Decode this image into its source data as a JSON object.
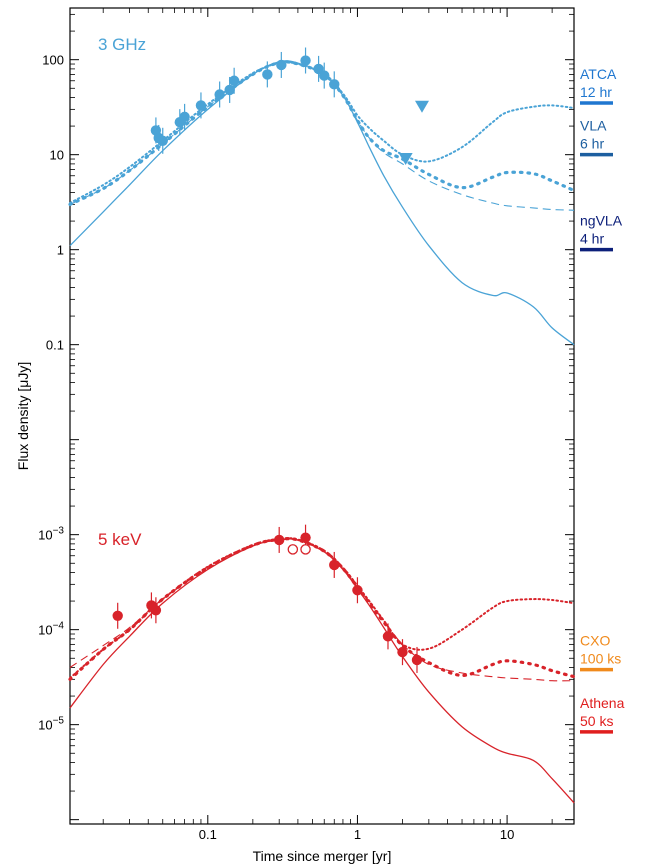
{
  "chart_data": {
    "type": "scatter",
    "xlabel": "Time since merger [yr]",
    "ylabel": "Flux density [μJy]",
    "x_scale": "log",
    "y_scale": "log",
    "xlim": [
      0.012,
      28
    ],
    "ylim": [
      9e-07,
      350
    ],
    "grid": false,
    "colors": {
      "radio": "#4aa3d6",
      "xray": "#d8232a",
      "atca": "#1f77d0",
      "vla": "#1d5fa0",
      "ngvla": "#0c1f7a",
      "cxo": "#f08a1c",
      "athena": "#e01e1e"
    },
    "x_ticks": [
      {
        "value": 0.1,
        "label": "0.1"
      },
      {
        "value": 1,
        "label": "1"
      },
      {
        "value": 10,
        "label": "10"
      }
    ],
    "y_ticks": [
      {
        "value": 100,
        "label": "100"
      },
      {
        "value": 10,
        "label": "10"
      },
      {
        "value": 1,
        "label": "1"
      },
      {
        "value": 0.1,
        "label": "0.1"
      },
      {
        "value": 0.001,
        "label": "10",
        "exp": "−3"
      },
      {
        "value": 0.0001,
        "label": "10",
        "exp": "−4"
      },
      {
        "value": 1e-05,
        "label": "10",
        "exp": "−5"
      }
    ],
    "panel_labels": [
      "3 GHz",
      "5 keV"
    ],
    "series": [
      {
        "name": "3 GHz",
        "role": "radio",
        "points": [
          [
            0.045,
            18
          ],
          [
            0.047,
            15
          ],
          [
            0.05,
            14
          ],
          [
            0.065,
            22
          ],
          [
            0.07,
            25
          ],
          [
            0.09,
            33
          ],
          [
            0.12,
            43
          ],
          [
            0.14,
            48
          ],
          [
            0.15,
            60
          ],
          [
            0.25,
            70
          ],
          [
            0.31,
            88
          ],
          [
            0.45,
            98
          ],
          [
            0.55,
            80
          ],
          [
            0.6,
            68
          ],
          [
            0.7,
            55
          ]
        ],
        "upper_limits": [
          [
            2.1,
            9.0
          ],
          [
            2.7,
            32
          ]
        ]
      },
      {
        "name": "5 keV",
        "role": "xray",
        "points": [
          [
            0.025,
            0.00014
          ],
          [
            0.042,
            0.00018
          ],
          [
            0.045,
            0.00016
          ],
          [
            0.3,
            0.00088
          ],
          [
            0.45,
            0.00093
          ],
          [
            0.7,
            0.00048
          ],
          [
            1.0,
            0.00026
          ],
          [
            1.6,
            8.5e-05
          ],
          [
            2.0,
            5.8e-05
          ],
          [
            2.5,
            4.8e-05
          ]
        ],
        "open_points": [
          [
            0.37,
            0.0007
          ],
          [
            0.45,
            0.0007
          ]
        ]
      }
    ],
    "models": {
      "radio": {
        "t": [
          0.012,
          0.02,
          0.03,
          0.05,
          0.1,
          0.2,
          0.3,
          0.4,
          0.6,
          0.8,
          1.0,
          1.2,
          1.5,
          2.0,
          3.0,
          5.0,
          8.0,
          10.0,
          15.0,
          20.0,
          28.0
        ],
        "solid": [
          1.1,
          2.5,
          4.8,
          11,
          30,
          70,
          95,
          92,
          70,
          42,
          22,
          12,
          6.0,
          2.8,
          1.1,
          0.45,
          0.33,
          0.35,
          0.25,
          0.15,
          0.1
        ],
        "dashed": [
          3.0,
          4.4,
          6.8,
          13,
          32,
          70,
          93,
          90,
          70,
          42,
          23,
          15,
          10.5,
          8.0,
          5.3,
          3.8,
          3.1,
          2.9,
          2.75,
          2.65,
          2.6
        ],
        "dotted": [
          3.1,
          4.8,
          7.4,
          14,
          34,
          72,
          92,
          90,
          70,
          44,
          26,
          19,
          14,
          10,
          8.5,
          12,
          22,
          28,
          32,
          33,
          31
        ],
        "densedot": [
          3.0,
          4.4,
          6.8,
          13,
          32,
          70,
          93,
          90,
          70,
          42,
          23,
          15,
          11,
          9.0,
          6.2,
          4.5,
          5.8,
          6.5,
          6.3,
          5.3,
          4.2
        ]
      },
      "xray": {
        "t": [
          0.012,
          0.02,
          0.03,
          0.05,
          0.1,
          0.2,
          0.3,
          0.4,
          0.6,
          0.8,
          1.0,
          1.2,
          1.5,
          2.0,
          3.0,
          5.0,
          8.0,
          10.0,
          15.0,
          20.0,
          28.0
        ],
        "solid": [
          1.5e-05,
          4.3e-05,
          8.5e-05,
          0.00019,
          0.00043,
          0.00076,
          0.00088,
          0.00088,
          0.00066,
          0.00043,
          0.00027,
          0.00018,
          0.000105,
          5.2e-05,
          2.2e-05,
          9.5e-06,
          5.8e-06,
          5e-06,
          4.2e-06,
          2.7e-06,
          1.5e-06
        ],
        "dashed": [
          4e-05,
          6.8e-05,
          0.000105,
          0.00021,
          0.00044,
          0.00076,
          0.00088,
          0.00087,
          0.00066,
          0.00044,
          0.00028,
          0.000195,
          0.000125,
          7e-05,
          4.3e-05,
          3.5e-05,
          3.2e-05,
          3.1e-05,
          3e-05,
          2.9e-05,
          2.9e-05
        ],
        "dotted": [
          3.1e-05,
          6.2e-05,
          0.0001,
          0.00021,
          0.00046,
          0.00078,
          0.0009,
          0.00089,
          0.00068,
          0.00045,
          0.00029,
          0.0002,
          0.000125,
          7e-05,
          6.3e-05,
          0.0001,
          0.00017,
          0.0002,
          0.00021,
          0.000205,
          0.00019
        ],
        "densedot": [
          3e-05,
          6.2e-05,
          0.0001,
          0.00021,
          0.00045,
          0.00077,
          0.00089,
          0.00088,
          0.00067,
          0.00044,
          0.00028,
          0.00019,
          0.00012,
          6.8e-05,
          4.5e-05,
          3.3e-05,
          4.3e-05,
          4.7e-05,
          4.3e-05,
          3.7e-05,
          3.2e-05
        ]
      }
    },
    "sensitivity_limits": [
      {
        "name": "ATCA",
        "time": "12 hr",
        "value": 35,
        "role": "atca"
      },
      {
        "name": "VLA",
        "time": "6 hr",
        "value": 10,
        "role": "vla"
      },
      {
        "name": "ngVLA",
        "time": "4 hr",
        "value": 1.0,
        "role": "ngvla"
      },
      {
        "name": "CXO",
        "time": "100 ks",
        "value": 3.8e-05,
        "role": "cxo"
      },
      {
        "name": "Athena",
        "time": "50 ks",
        "value": 8.4e-06,
        "role": "athena"
      }
    ]
  }
}
